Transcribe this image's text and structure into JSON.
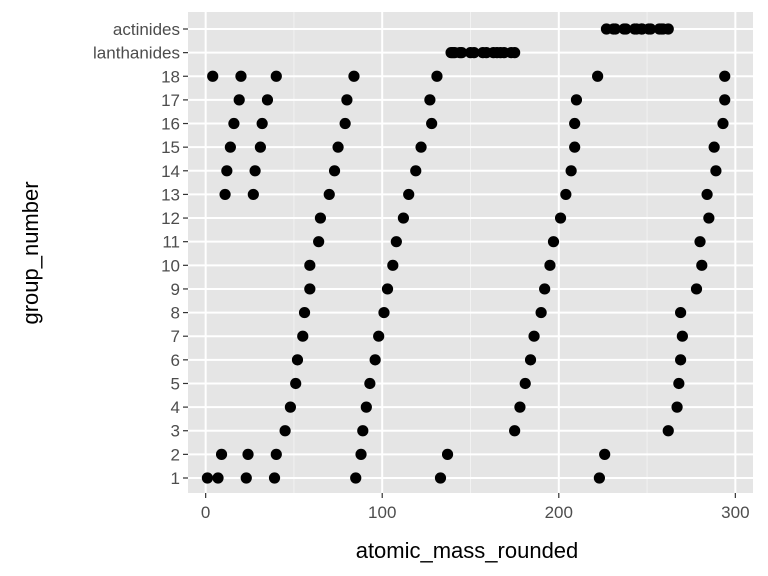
{
  "chart_data": {
    "type": "scatter",
    "xlabel": "atomic_mass_rounded",
    "ylabel": "group_number",
    "xlim": [
      -10,
      310
    ],
    "x_ticks": [
      0,
      100,
      200,
      300
    ],
    "x_tick_labels": [
      "0",
      "100",
      "200",
      "300"
    ],
    "y_categories": [
      "1",
      "2",
      "3",
      "4",
      "5",
      "6",
      "7",
      "8",
      "9",
      "10",
      "11",
      "12",
      "13",
      "14",
      "15",
      "16",
      "17",
      "18",
      "lanthanides",
      "actinides"
    ],
    "grid": true,
    "background": "#e5e5e5",
    "point_color": "#000000",
    "points": [
      {
        "x": 1,
        "group": "1"
      },
      {
        "x": 4,
        "group": "18"
      },
      {
        "x": 7,
        "group": "1"
      },
      {
        "x": 9,
        "group": "2"
      },
      {
        "x": 11,
        "group": "13"
      },
      {
        "x": 12,
        "group": "14"
      },
      {
        "x": 14,
        "group": "15"
      },
      {
        "x": 16,
        "group": "16"
      },
      {
        "x": 19,
        "group": "17"
      },
      {
        "x": 20,
        "group": "18"
      },
      {
        "x": 23,
        "group": "1"
      },
      {
        "x": 24,
        "group": "2"
      },
      {
        "x": 27,
        "group": "13"
      },
      {
        "x": 28,
        "group": "14"
      },
      {
        "x": 31,
        "group": "15"
      },
      {
        "x": 32,
        "group": "16"
      },
      {
        "x": 35,
        "group": "17"
      },
      {
        "x": 39,
        "group": "1"
      },
      {
        "x": 40,
        "group": "18"
      },
      {
        "x": 40,
        "group": "2"
      },
      {
        "x": 45,
        "group": "3"
      },
      {
        "x": 48,
        "group": "4"
      },
      {
        "x": 51,
        "group": "5"
      },
      {
        "x": 52,
        "group": "6"
      },
      {
        "x": 55,
        "group": "7"
      },
      {
        "x": 56,
        "group": "8"
      },
      {
        "x": 59,
        "group": "9"
      },
      {
        "x": 59,
        "group": "10"
      },
      {
        "x": 64,
        "group": "11"
      },
      {
        "x": 65,
        "group": "12"
      },
      {
        "x": 70,
        "group": "13"
      },
      {
        "x": 73,
        "group": "14"
      },
      {
        "x": 75,
        "group": "15"
      },
      {
        "x": 79,
        "group": "16"
      },
      {
        "x": 80,
        "group": "17"
      },
      {
        "x": 84,
        "group": "18"
      },
      {
        "x": 85,
        "group": "1"
      },
      {
        "x": 88,
        "group": "2"
      },
      {
        "x": 89,
        "group": "3"
      },
      {
        "x": 91,
        "group": "4"
      },
      {
        "x": 93,
        "group": "5"
      },
      {
        "x": 96,
        "group": "6"
      },
      {
        "x": 98,
        "group": "7"
      },
      {
        "x": 101,
        "group": "8"
      },
      {
        "x": 103,
        "group": "9"
      },
      {
        "x": 106,
        "group": "10"
      },
      {
        "x": 108,
        "group": "11"
      },
      {
        "x": 112,
        "group": "12"
      },
      {
        "x": 115,
        "group": "13"
      },
      {
        "x": 119,
        "group": "14"
      },
      {
        "x": 122,
        "group": "15"
      },
      {
        "x": 128,
        "group": "16"
      },
      {
        "x": 127,
        "group": "17"
      },
      {
        "x": 131,
        "group": "18"
      },
      {
        "x": 133,
        "group": "1"
      },
      {
        "x": 137,
        "group": "2"
      },
      {
        "x": 139,
        "group": "lanthanides"
      },
      {
        "x": 140,
        "group": "lanthanides"
      },
      {
        "x": 141,
        "group": "lanthanides"
      },
      {
        "x": 144,
        "group": "lanthanides"
      },
      {
        "x": 145,
        "group": "lanthanides"
      },
      {
        "x": 150,
        "group": "lanthanides"
      },
      {
        "x": 152,
        "group": "lanthanides"
      },
      {
        "x": 157,
        "group": "lanthanides"
      },
      {
        "x": 159,
        "group": "lanthanides"
      },
      {
        "x": 163,
        "group": "lanthanides"
      },
      {
        "x": 165,
        "group": "lanthanides"
      },
      {
        "x": 167,
        "group": "lanthanides"
      },
      {
        "x": 169,
        "group": "lanthanides"
      },
      {
        "x": 173,
        "group": "lanthanides"
      },
      {
        "x": 175,
        "group": "lanthanides"
      },
      {
        "x": 175,
        "group": "3"
      },
      {
        "x": 178,
        "group": "4"
      },
      {
        "x": 181,
        "group": "5"
      },
      {
        "x": 184,
        "group": "6"
      },
      {
        "x": 186,
        "group": "7"
      },
      {
        "x": 190,
        "group": "8"
      },
      {
        "x": 192,
        "group": "9"
      },
      {
        "x": 195,
        "group": "10"
      },
      {
        "x": 197,
        "group": "11"
      },
      {
        "x": 201,
        "group": "12"
      },
      {
        "x": 204,
        "group": "13"
      },
      {
        "x": 207,
        "group": "14"
      },
      {
        "x": 209,
        "group": "15"
      },
      {
        "x": 209,
        "group": "16"
      },
      {
        "x": 210,
        "group": "17"
      },
      {
        "x": 222,
        "group": "18"
      },
      {
        "x": 223,
        "group": "1"
      },
      {
        "x": 226,
        "group": "2"
      },
      {
        "x": 227,
        "group": "actinides"
      },
      {
        "x": 232,
        "group": "actinides"
      },
      {
        "x": 231,
        "group": "actinides"
      },
      {
        "x": 238,
        "group": "actinides"
      },
      {
        "x": 237,
        "group": "actinides"
      },
      {
        "x": 244,
        "group": "actinides"
      },
      {
        "x": 243,
        "group": "actinides"
      },
      {
        "x": 247,
        "group": "actinides"
      },
      {
        "x": 247,
        "group": "actinides"
      },
      {
        "x": 251,
        "group": "actinides"
      },
      {
        "x": 252,
        "group": "actinides"
      },
      {
        "x": 257,
        "group": "actinides"
      },
      {
        "x": 258,
        "group": "actinides"
      },
      {
        "x": 259,
        "group": "actinides"
      },
      {
        "x": 262,
        "group": "actinides"
      },
      {
        "x": 262,
        "group": "3"
      },
      {
        "x": 267,
        "group": "4"
      },
      {
        "x": 268,
        "group": "5"
      },
      {
        "x": 269,
        "group": "6"
      },
      {
        "x": 270,
        "group": "7"
      },
      {
        "x": 269,
        "group": "8"
      },
      {
        "x": 278,
        "group": "9"
      },
      {
        "x": 281,
        "group": "10"
      },
      {
        "x": 280,
        "group": "11"
      },
      {
        "x": 285,
        "group": "12"
      },
      {
        "x": 284,
        "group": "13"
      },
      {
        "x": 289,
        "group": "14"
      },
      {
        "x": 288,
        "group": "15"
      },
      {
        "x": 293,
        "group": "16"
      },
      {
        "x": 294,
        "group": "17"
      },
      {
        "x": 294,
        "group": "18"
      }
    ]
  }
}
